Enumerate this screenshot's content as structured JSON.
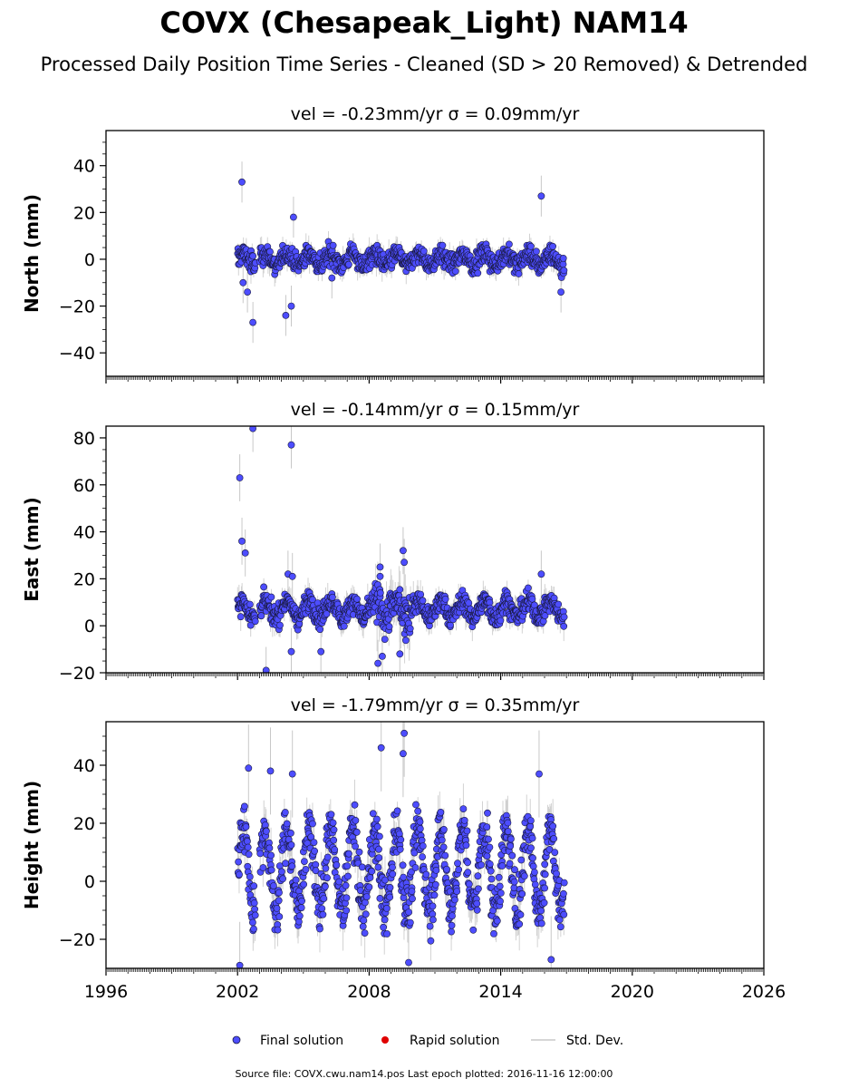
{
  "title": "COVX (Chesapeak_Light) NAM14",
  "subtitle": "Processed Daily Position Time Series - Cleaned (SD > 20 Removed) & Detrended",
  "legend": {
    "placement": "bottom-center",
    "final_label": "Final solution",
    "rapid_label": "Rapid solution",
    "std_label": "Std. Dev."
  },
  "source": "Source file: COVX.cwu.nam14.pos  Last epoch plotted: 2016-11-16 12:00:00",
  "colors": {
    "final": "#4d4dff",
    "final_edge": "#1a1a40",
    "rapid": "#e00000",
    "std": "#c8c8c8"
  },
  "chart_data": [
    {
      "type": "scatter",
      "title": "vel = -0.23mm/yr   σ = 0.09mm/yr",
      "ylabel": "North (mm)",
      "xlim": [
        1996,
        2026
      ],
      "ylim": [
        -50,
        55
      ],
      "xticks": [
        "1996",
        "2002",
        "2008",
        "2014",
        "2020",
        "2026"
      ],
      "yticks": [
        "−40",
        "−20",
        "0",
        "20",
        "40"
      ],
      "ytick_values": [
        -40,
        -20,
        0,
        20,
        40
      ],
      "x_tick_labels_visible": false,
      "band": {
        "start": 2002.0,
        "end": 2016.9,
        "amp": 2.5,
        "noise": 5.5,
        "period": 1.0,
        "std_base": 3.5
      },
      "series": [
        {
          "label": "Final solution",
          "points": [
            [
              2002.2,
              33
            ],
            [
              2002.45,
              -14
            ],
            [
              2002.7,
              -27
            ],
            [
              2002.25,
              -10
            ],
            [
              2004.2,
              -24
            ],
            [
              2004.45,
              -20
            ],
            [
              2004.55,
              18
            ],
            [
              2006.3,
              -8
            ],
            [
              2015.85,
              27
            ],
            [
              2016.75,
              -14
            ]
          ]
        }
      ]
    },
    {
      "type": "scatter",
      "title": "vel = -0.14mm/yr   σ = 0.15mm/yr",
      "ylabel": "East (mm)",
      "xlim": [
        1996,
        2026
      ],
      "ylim": [
        -20,
        85
      ],
      "xticks": [
        "1996",
        "2002",
        "2008",
        "2014",
        "2020",
        "2026"
      ],
      "yticks": [
        "−20",
        "0",
        "20",
        "40",
        "60",
        "80"
      ],
      "ytick_values": [
        -20,
        0,
        20,
        40,
        60,
        80
      ],
      "x_tick_labels_visible": false,
      "band": {
        "start": 2002.0,
        "end": 2016.9,
        "amp": 3.5,
        "noise": 6.0,
        "period": 1.0,
        "center": 7,
        "std_base": 4.0
      },
      "series": [
        {
          "label": "Final solution",
          "points": [
            [
              2002.1,
              63
            ],
            [
              2002.2,
              36
            ],
            [
              2002.35,
              31
            ],
            [
              2002.7,
              84
            ],
            [
              2004.45,
              77
            ],
            [
              2004.3,
              22
            ],
            [
              2004.5,
              21
            ],
            [
              2003.3,
              -19
            ],
            [
              2004.45,
              -11
            ],
            [
              2005.8,
              -11
            ],
            [
              2008.5,
              25
            ],
            [
              2008.5,
              21
            ],
            [
              2008.4,
              -16
            ],
            [
              2009.55,
              32
            ],
            [
              2009.6,
              27
            ],
            [
              2015.85,
              22
            ],
            [
              2008.6,
              -13
            ],
            [
              2009.4,
              -12
            ]
          ]
        }
      ]
    },
    {
      "type": "scatter",
      "title": "vel = -1.79mm/yr   σ = 0.35mm/yr",
      "ylabel": "Height (mm)",
      "xlim": [
        1996,
        2026
      ],
      "ylim": [
        -30,
        55
      ],
      "xticks": [
        "1996",
        "2002",
        "2008",
        "2014",
        "2020",
        "2026"
      ],
      "yticks": [
        "−20",
        "0",
        "20",
        "40"
      ],
      "ytick_values": [
        -20,
        0,
        20,
        40
      ],
      "x_tick_labels_visible": true,
      "band": {
        "start": 2002.0,
        "end": 2016.9,
        "amp": 14,
        "noise": 12,
        "period": 1.0,
        "center": 4,
        "std_base": 6.0
      },
      "series": [
        {
          "label": "Final solution",
          "points": [
            [
              2002.1,
              -29
            ],
            [
              2002.5,
              39
            ],
            [
              2008.55,
              46
            ],
            [
              2009.6,
              51
            ],
            [
              2009.55,
              44
            ],
            [
              2015.75,
              37
            ],
            [
              2016.3,
              -27
            ],
            [
              2009.8,
              -28
            ],
            [
              2003.5,
              38
            ],
            [
              2004.5,
              37
            ]
          ]
        }
      ]
    }
  ]
}
